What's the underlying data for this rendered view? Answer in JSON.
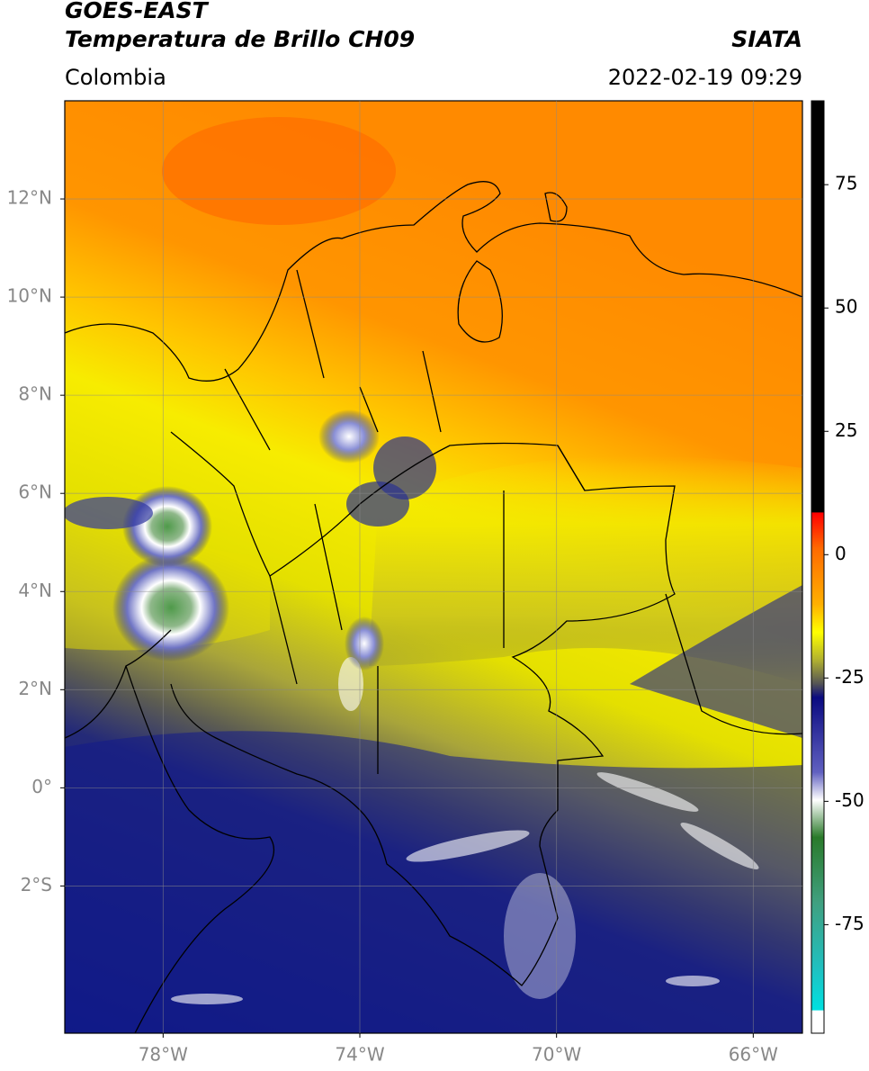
{
  "header": {
    "satellite": "GOES-EAST",
    "product": "Temperatura de Brillo CH09",
    "source": "SIATA",
    "region": "Colombia",
    "datetime": "2022-02-19 09:29"
  },
  "map": {
    "xlim": [
      -80,
      -65
    ],
    "ylim": [
      -5,
      14
    ],
    "xticks": [
      {
        "value": -78,
        "label": "78°W"
      },
      {
        "value": -74,
        "label": "74°W"
      },
      {
        "value": -70,
        "label": "70°W"
      },
      {
        "value": -66,
        "label": "66°W"
      }
    ],
    "yticks": [
      {
        "value": 12,
        "label": "12°N"
      },
      {
        "value": 10,
        "label": "10°N"
      },
      {
        "value": 8,
        "label": "8°N"
      },
      {
        "value": 6,
        "label": "6°N"
      },
      {
        "value": 4,
        "label": "4°N"
      },
      {
        "value": 2,
        "label": "2°N"
      },
      {
        "value": 0,
        "label": "0°"
      },
      {
        "value": -2,
        "label": "2°S"
      }
    ]
  },
  "colorbar": {
    "ylim": [
      -97,
      92
    ],
    "yticks": [
      75,
      50,
      25,
      0,
      -25,
      -50,
      -75
    ]
  }
}
